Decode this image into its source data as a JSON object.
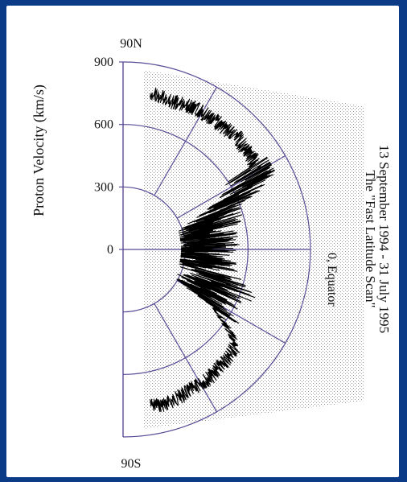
{
  "colors": {
    "background": "#0b3a86",
    "panel": "#ffffff",
    "grid": "#5a4a96",
    "stipple": "#9a9a9a",
    "trace": "#000000"
  },
  "chart_data": {
    "type": "polar_line",
    "title_lines": [
      "13 September 1994 - 31 July 1995",
      "The \"Fast Latitude Scan\""
    ],
    "ylabel": "Proton Velocity (km/s)",
    "radial_ticks": [
      "0",
      "300",
      "600",
      "900"
    ],
    "radial_tick_values": [
      0,
      300,
      600,
      900
    ],
    "rlim": [
      0,
      900
    ],
    "north_label": "90N",
    "south_label": "90S",
    "equator_label": "0, Equator",
    "angle_range_deg": [
      -90,
      90
    ],
    "grid_angle_step_deg": 30,
    "series": [
      {
        "latitude_deg": [
          -80,
          -75,
          -70,
          -65,
          -60,
          -55,
          -50,
          -45,
          -40,
          -35,
          -30,
          -25,
          -20,
          -15,
          -10,
          -5,
          0,
          5,
          10,
          15,
          20,
          25,
          30,
          35,
          40,
          45,
          50,
          55,
          60,
          65,
          70,
          75,
          80
        ],
        "speed_kms": [
          760,
          770,
          760,
          750,
          745,
          740,
          730,
          720,
          710,
          580,
          470,
          450,
          520,
          420,
          400,
          370,
          380,
          420,
          380,
          430,
          450,
          600,
          740,
          760,
          760,
          770,
          760,
          760,
          760,
          760,
          750,
          750,
          760
        ]
      }
    ]
  }
}
